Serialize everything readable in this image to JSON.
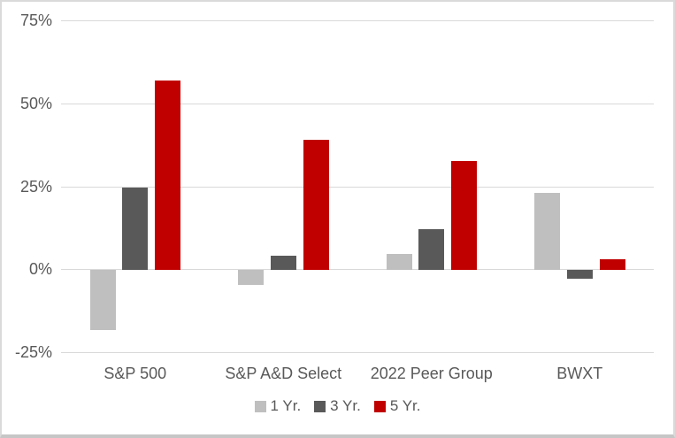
{
  "chart_data": {
    "type": "bar",
    "title": "",
    "categories": [
      "S&P 500",
      "S&P A&D Select",
      "2022 Peer Group",
      "BWXT"
    ],
    "series": [
      {
        "name": "1 Yr.",
        "color": "#bfbfbf",
        "values": [
          -18,
          -4.5,
          4.5,
          23
        ]
      },
      {
        "name": "3 Yr.",
        "color": "#595959",
        "values": [
          24.5,
          4,
          12,
          -2.5
        ]
      },
      {
        "name": "5 Yr.",
        "color": "#c00000",
        "values": [
          57,
          39,
          32.5,
          3
        ]
      }
    ],
    "y_axis": {
      "min": -25,
      "max": 75,
      "ticks": [
        {
          "value": 75,
          "label": "75%"
        },
        {
          "value": 50,
          "label": "50%"
        },
        {
          "value": 25,
          "label": "25%"
        },
        {
          "value": 0,
          "label": "0%"
        },
        {
          "value": -25,
          "label": "-25%"
        }
      ]
    },
    "xlabel": "",
    "ylabel": "",
    "grid": true,
    "legend_position": "bottom"
  },
  "style": {
    "background": "#ffffff",
    "gridline_color": "#d9d9d9",
    "axis_text_color": "#595959",
    "frame_border": "#dadada",
    "frame_border_bottom": "#c6c6c6"
  }
}
